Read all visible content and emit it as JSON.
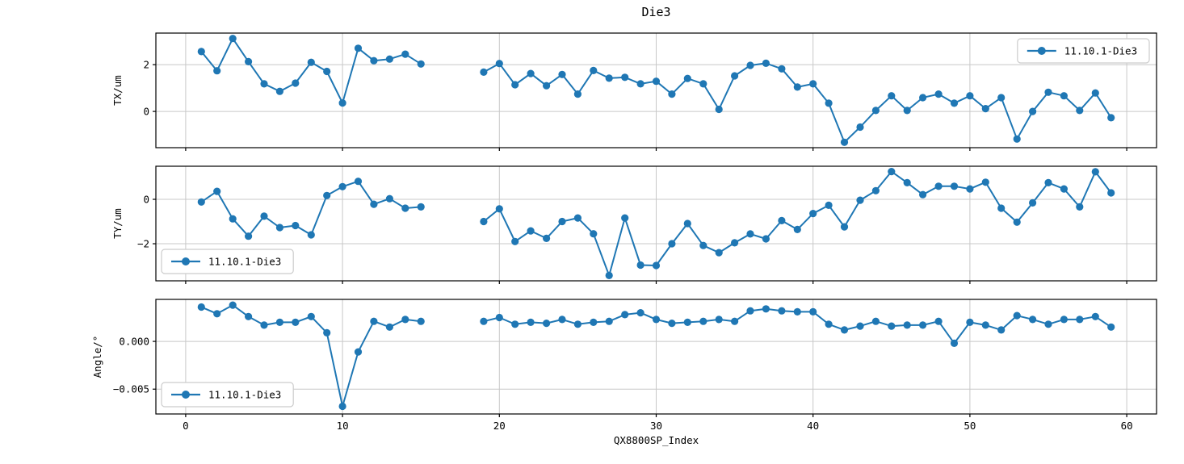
{
  "title": "Die3",
  "xlabel": "QX8800SP_Index",
  "legend_label": "11.10.1-Die3",
  "colors": {
    "line": "#1f77b4",
    "marker": "#1f77b4",
    "grid": "#c8c8c8",
    "spine": "#000000",
    "text": "#000000",
    "legend_border": "#cccccc",
    "background": "#ffffff"
  },
  "xlim": [
    -1.9,
    61.9
  ],
  "xticks": [
    {
      "v": 0,
      "label": "0"
    },
    {
      "v": 10,
      "label": "10"
    },
    {
      "v": 20,
      "label": "20"
    },
    {
      "v": 30,
      "label": "30"
    },
    {
      "v": 40,
      "label": "40"
    },
    {
      "v": 50,
      "label": "50"
    },
    {
      "v": 60,
      "label": "60"
    }
  ],
  "chart_data": [
    {
      "type": "line",
      "name": "TX",
      "title": "Die3",
      "ylabel": "TX/um",
      "xlabel": "QX8800SP_Index",
      "legend": {
        "label": "11.10.1-Die3",
        "loc": "upper-right"
      },
      "grid": true,
      "ylim": [
        -1.55,
        3.35
      ],
      "yticks": [
        {
          "v": 2,
          "label": "2"
        },
        {
          "v": 0,
          "label": "0"
        }
      ],
      "x": [
        1,
        2,
        3,
        4,
        5,
        6,
        7,
        8,
        9,
        10,
        11,
        12,
        13,
        14,
        15,
        19,
        20,
        21,
        22,
        23,
        24,
        25,
        26,
        27,
        28,
        29,
        30,
        31,
        32,
        33,
        34,
        35,
        36,
        37,
        38,
        39,
        40,
        41,
        42,
        43,
        44,
        45,
        46,
        47,
        48,
        49,
        50,
        51,
        52,
        53,
        54,
        55,
        56,
        57,
        58,
        59
      ],
      "y": [
        2.56,
        1.74,
        3.12,
        2.13,
        1.18,
        0.86,
        1.21,
        2.1,
        1.71,
        0.36,
        2.7,
        2.17,
        2.24,
        2.45,
        2.03,
        1.68,
        2.05,
        1.14,
        1.62,
        1.1,
        1.58,
        0.74,
        1.75,
        1.42,
        1.46,
        1.18,
        1.29,
        0.74,
        1.41,
        1.18,
        0.09,
        1.52,
        1.97,
        2.06,
        1.82,
        1.04,
        1.18,
        0.35,
        -1.32,
        -0.67,
        0.04,
        0.67,
        0.04,
        0.59,
        0.74,
        0.35,
        0.67,
        0.12,
        0.59,
        -1.18,
        0.0,
        0.82,
        0.67,
        0.04,
        0.79,
        -0.27
      ]
    },
    {
      "type": "line",
      "name": "TY",
      "ylabel": "TY/um",
      "xlabel": "QX8800SP_Index",
      "legend": {
        "label": "11.10.1-Die3",
        "loc": "lower-left"
      },
      "grid": true,
      "ylim": [
        -3.67,
        1.49
      ],
      "yticks": [
        {
          "v": 0,
          "label": "0"
        },
        {
          "v": -2,
          "label": "−2"
        }
      ],
      "x": [
        1,
        2,
        3,
        4,
        5,
        6,
        7,
        8,
        9,
        10,
        11,
        12,
        13,
        14,
        15,
        19,
        20,
        21,
        22,
        23,
        24,
        25,
        26,
        27,
        28,
        29,
        30,
        31,
        32,
        33,
        34,
        35,
        36,
        37,
        38,
        39,
        40,
        41,
        42,
        43,
        44,
        45,
        46,
        47,
        48,
        49,
        50,
        51,
        52,
        53,
        54,
        55,
        56,
        57,
        58,
        59
      ],
      "y": [
        -0.12,
        0.36,
        -0.88,
        -1.66,
        -0.76,
        -1.27,
        -1.18,
        -1.6,
        0.17,
        0.57,
        0.81,
        -0.22,
        0.03,
        -0.4,
        -0.34,
        -1.0,
        -0.43,
        -1.9,
        -1.42,
        -1.76,
        -1.0,
        -0.84,
        -1.55,
        -3.43,
        -0.84,
        -2.96,
        -2.98,
        -2.0,
        -1.09,
        -2.08,
        -2.4,
        -1.96,
        -1.56,
        -1.78,
        -0.96,
        -1.36,
        -0.64,
        -0.27,
        -1.24,
        -0.04,
        0.39,
        1.25,
        0.75,
        0.21,
        0.59,
        0.59,
        0.47,
        0.77,
        -0.4,
        -1.03,
        -0.16,
        0.75,
        0.47,
        -0.34,
        1.24,
        0.29
      ]
    },
    {
      "type": "line",
      "name": "Angle",
      "ylabel": "Angle/°",
      "xlabel": "QX8800SP_Index",
      "legend": {
        "label": "11.10.1-Die3",
        "loc": "lower-left"
      },
      "grid": true,
      "ylim": [
        -0.0076,
        0.0044
      ],
      "yticks": [
        {
          "v": 0,
          "label": "0.000"
        },
        {
          "v": -0.005,
          "label": "−0.005"
        }
      ],
      "x": [
        1,
        2,
        3,
        4,
        5,
        6,
        7,
        8,
        9,
        10,
        11,
        12,
        13,
        14,
        15,
        19,
        20,
        21,
        22,
        23,
        24,
        25,
        26,
        27,
        28,
        29,
        30,
        31,
        32,
        33,
        34,
        35,
        36,
        37,
        38,
        39,
        40,
        41,
        42,
        43,
        44,
        45,
        46,
        47,
        48,
        49,
        50,
        51,
        52,
        53,
        54,
        55,
        56,
        57,
        58,
        59
      ],
      "y": [
        0.0036,
        0.0029,
        0.0038,
        0.0026,
        0.0017,
        0.002,
        0.002,
        0.0026,
        0.0009,
        -0.0068,
        -0.0011,
        0.0021,
        0.0015,
        0.0023,
        0.0021,
        0.0021,
        0.0025,
        0.0018,
        0.002,
        0.0019,
        0.0023,
        0.0018,
        0.002,
        0.0021,
        0.0028,
        0.003,
        0.0023,
        0.0019,
        0.002,
        0.0021,
        0.0023,
        0.0021,
        0.0032,
        0.0034,
        0.0032,
        0.0031,
        0.0031,
        0.0018,
        0.0012,
        0.0016,
        0.0021,
        0.0016,
        0.0017,
        0.0017,
        0.0021,
        -0.0002,
        0.002,
        0.0017,
        0.0012,
        0.0027,
        0.0023,
        0.0018,
        0.0023,
        0.0023,
        0.0026,
        0.0015
      ]
    }
  ]
}
